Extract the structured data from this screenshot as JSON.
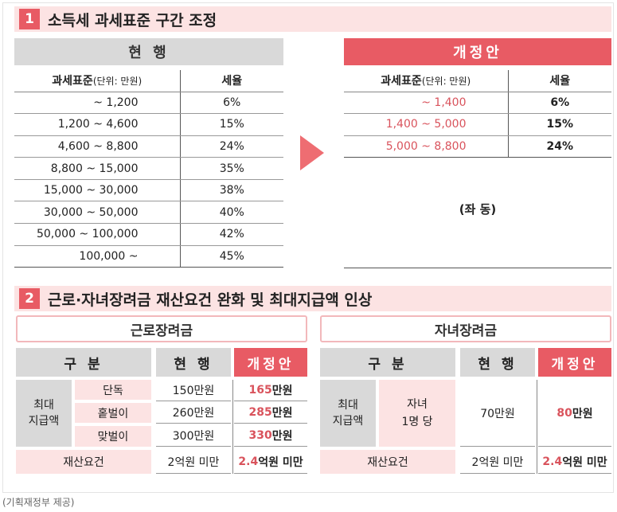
{
  "section1": {
    "number": "1",
    "title": "소득세 과세표준 구간 조정",
    "current_label": "현 행",
    "revised_label": "개정안",
    "col_base": "과세표준",
    "col_unit": "(단위: 만원)",
    "col_rate": "세율",
    "current_rows": [
      {
        "range": "~ 1,200",
        "rate": "6%"
      },
      {
        "range": "1,200 ~ 4,600",
        "rate": "15%"
      },
      {
        "range": "4,600 ~ 8,800",
        "rate": "24%"
      },
      {
        "range": "8,800 ~ 15,000",
        "rate": "35%"
      },
      {
        "range": "15,000 ~ 30,000",
        "rate": "38%"
      },
      {
        "range": "30,000 ~ 50,000",
        "rate": "40%"
      },
      {
        "range": "50,000 ~ 100,000",
        "rate": "42%"
      },
      {
        "range": "100,000 ~",
        "rate": "45%"
      }
    ],
    "revised_rows": [
      {
        "range": "~ 1,400",
        "rate": "6%"
      },
      {
        "range": "1,400 ~ 5,000",
        "rate": "15%"
      },
      {
        "range": "5,000 ~ 8,800",
        "rate": "24%"
      }
    ],
    "same_note": "(좌 동)"
  },
  "section2": {
    "number": "2",
    "title": "근로·자녀장려금 재산요건 완화 및 최대지급액 인상",
    "left": {
      "title": "근로장려금",
      "col_category": "구 분",
      "col_current": "현 행",
      "col_revised": "개정안",
      "max_label": "최대\n지급액",
      "rows": [
        {
          "label": "단독",
          "current": "150만원",
          "new_num": "165",
          "new_unit": "만원"
        },
        {
          "label": "홑벌이",
          "current": "260만원",
          "new_num": "285",
          "new_unit": "만원"
        },
        {
          "label": "맞벌이",
          "current": "300만원",
          "new_num": "330",
          "new_unit": "만원"
        }
      ],
      "asset_label": "재산요건",
      "asset_current": "2억원 미만",
      "asset_new_num": "2.4",
      "asset_new_unit": "억원 미만"
    },
    "right": {
      "title": "자녀장려금",
      "col_category": "구 분",
      "col_current": "현 행",
      "col_revised": "개정안",
      "max_label": "최대\n지급액",
      "sub_label": "자녀\n1명 당",
      "current": "70만원",
      "new_num": "80",
      "new_unit": "만원",
      "asset_label": "재산요건",
      "asset_current": "2억원 미만",
      "asset_new_num": "2.4",
      "asset_new_unit": "억원 미만"
    }
  },
  "caption": "(기획재정부 제공)"
}
